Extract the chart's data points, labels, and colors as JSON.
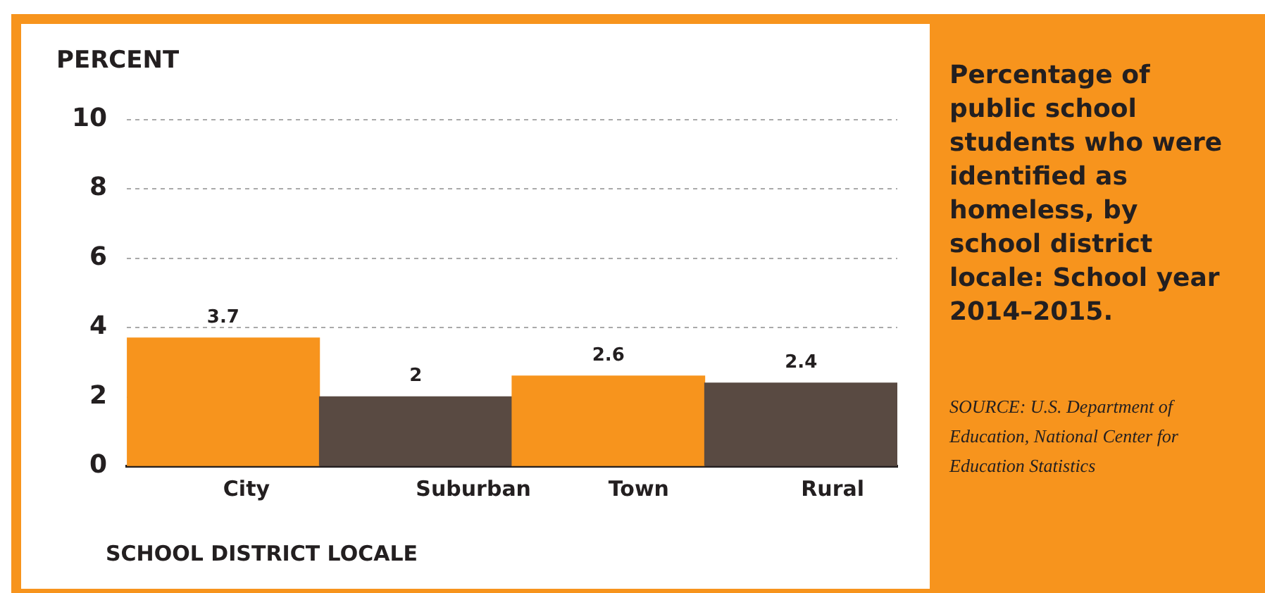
{
  "chart_data": {
    "type": "bar",
    "title": "Percentage of public school students who were identified as homeless, by school district locale: School year 2014–2015.",
    "ylabel": "PERCENT",
    "xlabel": "SCHOOL DISTRICT LOCALE",
    "categories": [
      "City",
      "Suburban",
      "Town",
      "Rural"
    ],
    "values": [
      3.7,
      2,
      2.6,
      2.4
    ],
    "colors": [
      "#f7941d",
      "#594a42",
      "#f7941d",
      "#594a42"
    ],
    "ylim": [
      0,
      10
    ],
    "yticks": [
      0,
      2,
      4,
      6,
      8,
      10
    ],
    "grid": "y",
    "legend": false,
    "data_labels": true,
    "annotations": [
      "SOURCE: U.S. Department of Education, National Center for Education Statistics"
    ]
  }
}
